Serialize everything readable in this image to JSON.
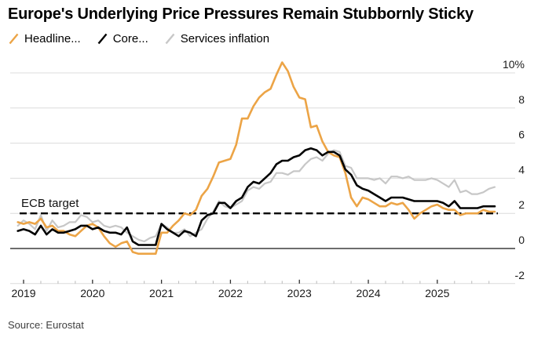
{
  "title": "Europe's Underlying Price Pressures Remain Stubbornly Sticky",
  "source": "Source: Eurostat",
  "legend": [
    {
      "label": "Headline...",
      "color": "#ECA446"
    },
    {
      "label": "Core...",
      "color": "#000000"
    },
    {
      "label": "Services inflation",
      "color": "#C7C7C7"
    }
  ],
  "annotation": {
    "ecb_target_label": "ECB target",
    "ecb_target_value": 2
  },
  "colors": {
    "headline": "#ECA446",
    "core": "#000000",
    "services": "#C7C7C7",
    "gridline": "#DCDCDC",
    "zero_line": "#3D3D3D",
    "dashed_target": "#000000",
    "tick_major": "#2E2E2E",
    "tick_minor": "#B9B9B9",
    "axis_text": "#1A1A1A"
  },
  "chart_data": {
    "type": "line",
    "title": "Europe's Underlying Price Pressures Remain Stubbornly Sticky",
    "x_start": "2018-12",
    "x_end": "2025-11",
    "x_frequency": "monthly",
    "x_tick_labels": [
      "2019",
      "2020",
      "2021",
      "2022",
      "2023",
      "2024",
      "2025"
    ],
    "y_ticks": [
      10,
      8,
      6,
      4,
      2,
      0,
      -2
    ],
    "y_tick_labels": [
      "10%",
      "8",
      "6",
      "4",
      "2",
      "0",
      "-2"
    ],
    "ylim": [
      -2,
      10
    ],
    "grid": "horizontal",
    "legend_position": "top-left",
    "reference_line": {
      "label": "ECB target",
      "value": 2,
      "style": "dashed"
    },
    "series": [
      {
        "name": "Headline...",
        "color": "#ECA446",
        "values": [
          1.5,
          1.4,
          1.5,
          1.4,
          1.7,
          1.2,
          1.3,
          1.0,
          1.0,
          0.8,
          0.7,
          1.0,
          1.3,
          1.4,
          1.2,
          0.7,
          0.3,
          0.1,
          0.3,
          0.4,
          -0.2,
          -0.3,
          -0.3,
          -0.3,
          -0.3,
          0.9,
          0.9,
          1.3,
          1.6,
          2.0,
          1.9,
          2.2,
          3.0,
          3.4,
          4.1,
          4.9,
          5.0,
          5.1,
          5.9,
          7.4,
          7.4,
          8.1,
          8.6,
          8.9,
          9.1,
          9.9,
          10.6,
          10.1,
          9.2,
          8.6,
          8.5,
          6.9,
          7.0,
          6.1,
          5.5,
          5.3,
          5.2,
          4.3,
          2.9,
          2.4,
          2.9,
          2.8,
          2.6,
          2.4,
          2.4,
          2.6,
          2.5,
          2.6,
          2.2,
          1.7,
          2.0,
          2.2,
          2.4,
          2.5,
          2.3,
          2.2,
          2.2,
          1.9,
          2.0,
          2.0,
          2.0,
          2.2,
          2.1,
          2.1
        ]
      },
      {
        "name": "Core...",
        "color": "#000000",
        "values": [
          1.0,
          1.1,
          1.0,
          0.8,
          1.3,
          0.8,
          1.1,
          0.9,
          0.9,
          1.0,
          1.1,
          1.3,
          1.3,
          1.1,
          1.2,
          1.0,
          0.9,
          0.9,
          0.8,
          1.2,
          0.4,
          0.2,
          0.2,
          0.2,
          0.2,
          1.4,
          1.1,
          0.9,
          0.7,
          1.0,
          0.9,
          0.7,
          1.6,
          1.9,
          2.0,
          2.6,
          2.6,
          2.3,
          2.7,
          2.9,
          3.5,
          3.8,
          3.7,
          4.0,
          4.3,
          4.8,
          5.0,
          5.0,
          5.2,
          5.3,
          5.6,
          5.7,
          5.6,
          5.3,
          5.5,
          5.5,
          5.3,
          4.5,
          4.2,
          3.6,
          3.4,
          3.3,
          3.1,
          2.9,
          2.7,
          2.9,
          2.9,
          2.9,
          2.8,
          2.7,
          2.7,
          2.7,
          2.7,
          2.7,
          2.6,
          2.4,
          2.7,
          2.3,
          2.3,
          2.3,
          2.3,
          2.4,
          2.4,
          2.4
        ]
      },
      {
        "name": "Services inflation",
        "color": "#C7C7C7",
        "values": [
          1.3,
          1.6,
          1.4,
          1.1,
          1.9,
          1.0,
          1.6,
          1.2,
          1.3,
          1.5,
          1.5,
          1.9,
          1.8,
          1.5,
          1.6,
          1.3,
          1.2,
          1.3,
          1.2,
          0.9,
          0.7,
          0.5,
          0.4,
          0.6,
          0.7,
          1.4,
          1.2,
          0.9,
          0.9,
          1.1,
          0.7,
          0.9,
          1.1,
          1.7,
          2.1,
          2.7,
          2.4,
          2.3,
          2.5,
          2.7,
          3.3,
          3.5,
          3.4,
          3.7,
          3.8,
          4.3,
          4.3,
          4.2,
          4.4,
          4.4,
          4.8,
          5.1,
          5.2,
          5.0,
          5.4,
          5.6,
          5.5,
          4.7,
          4.6,
          4.0,
          4.0,
          4.0,
          3.9,
          4.0,
          3.7,
          4.1,
          4.1,
          4.0,
          4.1,
          3.9,
          3.9,
          3.9,
          4.0,
          3.9,
          3.7,
          3.5,
          3.9,
          3.2,
          3.3,
          3.1,
          3.1,
          3.2,
          3.4,
          3.5
        ]
      }
    ]
  }
}
